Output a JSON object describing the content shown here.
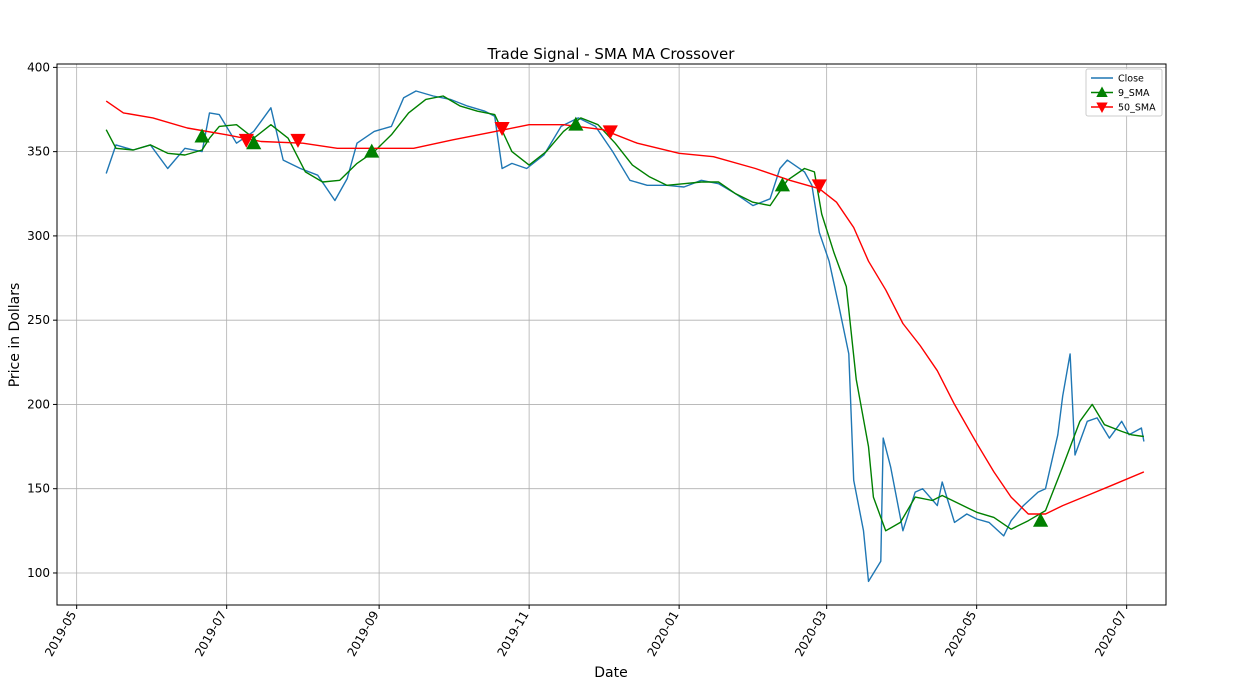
{
  "chart_data": {
    "type": "line",
    "title": "Trade Signal - SMA MA Crossover",
    "xlabel": "Date",
    "ylabel": "Price in Dollars",
    "xlim": [
      "2019-04-23",
      "2020-07-17"
    ],
    "ylim": [
      81,
      402
    ],
    "grid": true,
    "legend_placement": "top-right",
    "x_ticks": [
      "2019-05",
      "2019-07",
      "2019-09",
      "2019-11",
      "2020-01",
      "2020-03",
      "2020-05",
      "2020-07"
    ],
    "y_ticks": [
      100,
      150,
      200,
      250,
      300,
      350,
      400
    ],
    "series": [
      {
        "name": "Close",
        "color": "#1f77b4",
        "points": [
          [
            "2019-05-13",
            337
          ],
          [
            "2019-05-17",
            354
          ],
          [
            "2019-05-24",
            351
          ],
          [
            "2019-05-31",
            354
          ],
          [
            "2019-06-07",
            340
          ],
          [
            "2019-06-14",
            352
          ],
          [
            "2019-06-21",
            350
          ],
          [
            "2019-06-24",
            373
          ],
          [
            "2019-06-28",
            372
          ],
          [
            "2019-07-05",
            355
          ],
          [
            "2019-07-12",
            362
          ],
          [
            "2019-07-15",
            368
          ],
          [
            "2019-07-19",
            376
          ],
          [
            "2019-07-24",
            345
          ],
          [
            "2019-07-31",
            340
          ],
          [
            "2019-08-07",
            336
          ],
          [
            "2019-08-14",
            321
          ],
          [
            "2019-08-19",
            334
          ],
          [
            "2019-08-23",
            355
          ],
          [
            "2019-08-30",
            362
          ],
          [
            "2019-09-06",
            365
          ],
          [
            "2019-09-11",
            382
          ],
          [
            "2019-09-16",
            386
          ],
          [
            "2019-09-23",
            383
          ],
          [
            "2019-09-30",
            381
          ],
          [
            "2019-10-07",
            377
          ],
          [
            "2019-10-14",
            374
          ],
          [
            "2019-10-18",
            371
          ],
          [
            "2019-10-21",
            340
          ],
          [
            "2019-10-25",
            343
          ],
          [
            "2019-10-31",
            340
          ],
          [
            "2019-11-07",
            348
          ],
          [
            "2019-11-14",
            365
          ],
          [
            "2019-11-21",
            370
          ],
          [
            "2019-11-28",
            365
          ],
          [
            "2019-12-05",
            350
          ],
          [
            "2019-12-12",
            333
          ],
          [
            "2019-12-19",
            330
          ],
          [
            "2019-12-27",
            330
          ],
          [
            "2020-01-03",
            329
          ],
          [
            "2020-01-10",
            333
          ],
          [
            "2020-01-17",
            331
          ],
          [
            "2020-01-24",
            325
          ],
          [
            "2020-01-31",
            318
          ],
          [
            "2020-02-07",
            322
          ],
          [
            "2020-02-11",
            340
          ],
          [
            "2020-02-14",
            345
          ],
          [
            "2020-02-21",
            338
          ],
          [
            "2020-02-24",
            330
          ],
          [
            "2020-02-27",
            302
          ],
          [
            "2020-03-02",
            285
          ],
          [
            "2020-03-06",
            258
          ],
          [
            "2020-03-10",
            230
          ],
          [
            "2020-03-12",
            155
          ],
          [
            "2020-03-16",
            125
          ],
          [
            "2020-03-18",
            95
          ],
          [
            "2020-03-23",
            107
          ],
          [
            "2020-03-24",
            180
          ],
          [
            "2020-03-27",
            163
          ],
          [
            "2020-04-01",
            125
          ],
          [
            "2020-04-06",
            148
          ],
          [
            "2020-04-09",
            150
          ],
          [
            "2020-04-15",
            140
          ],
          [
            "2020-04-17",
            154
          ],
          [
            "2020-04-22",
            130
          ],
          [
            "2020-04-27",
            135
          ],
          [
            "2020-05-01",
            132
          ],
          [
            "2020-05-06",
            130
          ],
          [
            "2020-05-12",
            122
          ],
          [
            "2020-05-15",
            131
          ],
          [
            "2020-05-20",
            140
          ],
          [
            "2020-05-26",
            148
          ],
          [
            "2020-05-29",
            150
          ],
          [
            "2020-06-03",
            182
          ],
          [
            "2020-06-05",
            205
          ],
          [
            "2020-06-08",
            230
          ],
          [
            "2020-06-10",
            170
          ],
          [
            "2020-06-15",
            190
          ],
          [
            "2020-06-19",
            192
          ],
          [
            "2020-06-24",
            180
          ],
          [
            "2020-06-29",
            190
          ],
          [
            "2020-07-02",
            182
          ],
          [
            "2020-07-07",
            186
          ],
          [
            "2020-07-08",
            178
          ]
        ]
      },
      {
        "name": "9_SMA",
        "color": "#008000",
        "points": [
          [
            "2019-05-13",
            363
          ],
          [
            "2019-05-17",
            352
          ],
          [
            "2019-05-24",
            351
          ],
          [
            "2019-05-31",
            354
          ],
          [
            "2019-06-07",
            349
          ],
          [
            "2019-06-14",
            348
          ],
          [
            "2019-06-21",
            351
          ],
          [
            "2019-06-24",
            358
          ],
          [
            "2019-06-28",
            365
          ],
          [
            "2019-07-05",
            366
          ],
          [
            "2019-07-12",
            358
          ],
          [
            "2019-07-19",
            366
          ],
          [
            "2019-07-26",
            358
          ],
          [
            "2019-08-02",
            338
          ],
          [
            "2019-08-09",
            332
          ],
          [
            "2019-08-16",
            333
          ],
          [
            "2019-08-23",
            343
          ],
          [
            "2019-08-30",
            350
          ],
          [
            "2019-09-06",
            360
          ],
          [
            "2019-09-13",
            373
          ],
          [
            "2019-09-20",
            381
          ],
          [
            "2019-09-27",
            383
          ],
          [
            "2019-10-04",
            377
          ],
          [
            "2019-10-11",
            374
          ],
          [
            "2019-10-18",
            372
          ],
          [
            "2019-10-25",
            350
          ],
          [
            "2019-11-01",
            342
          ],
          [
            "2019-11-08",
            350
          ],
          [
            "2019-11-15",
            362
          ],
          [
            "2019-11-22",
            370
          ],
          [
            "2019-11-29",
            366
          ],
          [
            "2019-12-06",
            355
          ],
          [
            "2019-12-13",
            342
          ],
          [
            "2019-12-20",
            335
          ],
          [
            "2019-12-27",
            330
          ],
          [
            "2020-01-03",
            331
          ],
          [
            "2020-01-10",
            332
          ],
          [
            "2020-01-17",
            332
          ],
          [
            "2020-01-24",
            325
          ],
          [
            "2020-01-31",
            320
          ],
          [
            "2020-02-07",
            318
          ],
          [
            "2020-02-14",
            333
          ],
          [
            "2020-02-21",
            340
          ],
          [
            "2020-02-25",
            338
          ],
          [
            "2020-02-28",
            313
          ],
          [
            "2020-03-04",
            290
          ],
          [
            "2020-03-09",
            270
          ],
          [
            "2020-03-13",
            215
          ],
          [
            "2020-03-18",
            175
          ],
          [
            "2020-03-20",
            145
          ],
          [
            "2020-03-25",
            125
          ],
          [
            "2020-03-31",
            130
          ],
          [
            "2020-04-06",
            145
          ],
          [
            "2020-04-13",
            143
          ],
          [
            "2020-04-17",
            146
          ],
          [
            "2020-04-24",
            141
          ],
          [
            "2020-05-01",
            136
          ],
          [
            "2020-05-08",
            133
          ],
          [
            "2020-05-15",
            126
          ],
          [
            "2020-05-22",
            131
          ],
          [
            "2020-05-29",
            137
          ],
          [
            "2020-06-05",
            163
          ],
          [
            "2020-06-12",
            190
          ],
          [
            "2020-06-17",
            200
          ],
          [
            "2020-06-22",
            188
          ],
          [
            "2020-06-29",
            184
          ],
          [
            "2020-07-03",
            182
          ],
          [
            "2020-07-08",
            181
          ]
        ]
      },
      {
        "name": "50_SMA",
        "color": "#ff0000",
        "points": [
          [
            "2019-05-13",
            380
          ],
          [
            "2019-05-20",
            373
          ],
          [
            "2019-06-01",
            370
          ],
          [
            "2019-06-15",
            364
          ],
          [
            "2019-07-01",
            360
          ],
          [
            "2019-07-15",
            356
          ],
          [
            "2019-08-01",
            355
          ],
          [
            "2019-08-15",
            352
          ],
          [
            "2019-09-01",
            352
          ],
          [
            "2019-09-15",
            352
          ],
          [
            "2019-10-01",
            357
          ],
          [
            "2019-10-15",
            361
          ],
          [
            "2019-11-01",
            366
          ],
          [
            "2019-11-15",
            366
          ],
          [
            "2019-12-01",
            363
          ],
          [
            "2019-12-15",
            355
          ],
          [
            "2020-01-01",
            349
          ],
          [
            "2020-01-15",
            347
          ],
          [
            "2020-02-01",
            340
          ],
          [
            "2020-02-15",
            333
          ],
          [
            "2020-02-27",
            328
          ],
          [
            "2020-03-05",
            320
          ],
          [
            "2020-03-12",
            305
          ],
          [
            "2020-03-18",
            285
          ],
          [
            "2020-03-25",
            268
          ],
          [
            "2020-04-01",
            248
          ],
          [
            "2020-04-08",
            235
          ],
          [
            "2020-04-15",
            220
          ],
          [
            "2020-04-22",
            200
          ],
          [
            "2020-05-01",
            177
          ],
          [
            "2020-05-08",
            160
          ],
          [
            "2020-05-15",
            145
          ],
          [
            "2020-05-22",
            135
          ],
          [
            "2020-05-29",
            135
          ],
          [
            "2020-06-05",
            140
          ],
          [
            "2020-06-15",
            146
          ],
          [
            "2020-06-25",
            152
          ],
          [
            "2020-07-08",
            160
          ]
        ]
      }
    ],
    "signals": [
      {
        "type": "buy",
        "date": "2019-06-21",
        "value": 359
      },
      {
        "type": "sell",
        "date": "2019-07-09",
        "value": 357
      },
      {
        "type": "buy",
        "date": "2019-07-12",
        "value": 355
      },
      {
        "type": "sell",
        "date": "2019-07-30",
        "value": 357
      },
      {
        "type": "buy",
        "date": "2019-08-29",
        "value": 350
      },
      {
        "type": "sell",
        "date": "2019-10-21",
        "value": 364
      },
      {
        "type": "buy",
        "date": "2019-11-20",
        "value": 366
      },
      {
        "type": "sell",
        "date": "2019-12-04",
        "value": 362
      },
      {
        "type": "buy",
        "date": "2020-02-12",
        "value": 330
      },
      {
        "type": "sell",
        "date": "2020-02-27",
        "value": 330
      },
      {
        "type": "buy",
        "date": "2020-05-27",
        "value": 131
      }
    ],
    "legend": [
      {
        "label": "Close",
        "color": "#1f77b4",
        "marker": "line"
      },
      {
        "label": "9_SMA",
        "color": "#008000",
        "marker": "triangle-up"
      },
      {
        "label": "50_SMA",
        "color": "#ff0000",
        "marker": "triangle-down"
      }
    ]
  }
}
